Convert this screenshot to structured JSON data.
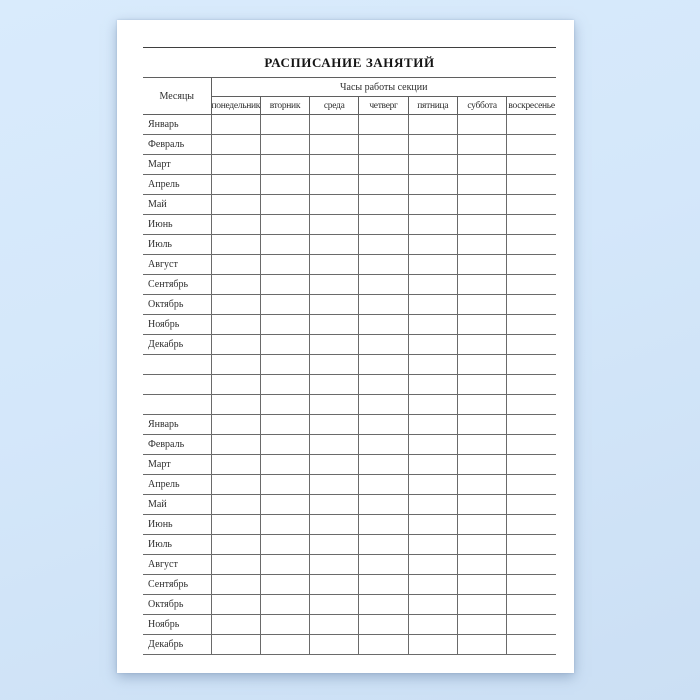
{
  "document": {
    "title": "РАСПИСАНИЕ ЗАНЯТИЙ"
  },
  "table": {
    "months_header": "Месяцы",
    "span_header": "Часы работы секции",
    "day_columns": [
      "понедельник",
      "вторник",
      "среда",
      "четверг",
      "пятница",
      "суббота",
      "воскресенье"
    ],
    "row_labels": [
      "Январь",
      "Февраль",
      "Март",
      "Апрель",
      "Май",
      "Июнь",
      "Июль",
      "Август",
      "Сентябрь",
      "Октябрь",
      "Ноябрь",
      "Декабрь",
      "",
      "",
      "",
      "Январь",
      "Февраль",
      "Март",
      "Апрель",
      "Май",
      "Июнь",
      "Июль",
      "Август",
      "Сентябрь",
      "Октябрь",
      "Ноябрь",
      "Декабрь"
    ]
  },
  "colors": {
    "background_blue": "#d4e7fa",
    "paper": "#ffffff",
    "grid_line": "#6a6a6a",
    "header_line": "#5f5f5f",
    "title_text": "#151515",
    "cell_text": "#2e2e2e"
  }
}
